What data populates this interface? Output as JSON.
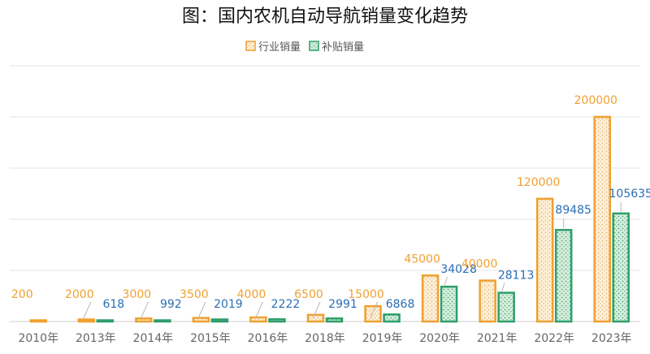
{
  "colors": {
    "industry": "#f0a030",
    "subsidy": "#2e9e6b",
    "industry_label": "#f0a030",
    "subsidy_label": "#2a6eb5",
    "grid": "#e3e3e3",
    "axis": "#cfcfcf"
  },
  "chart_data": {
    "type": "bar",
    "title": "图：国内农机自动导航销量变化趋势",
    "categories": [
      "2010年",
      "2013年",
      "2014年",
      "2015年",
      "2016年",
      "2018年",
      "2019年",
      "2020年",
      "2021年",
      "2022年",
      "2023年"
    ],
    "series": [
      {
        "name": "行业销量",
        "values": [
          200,
          2000,
          3000,
          3500,
          4000,
          6500,
          15000,
          45000,
          40000,
          120000,
          200000
        ]
      },
      {
        "name": "补贴销量",
        "values": [
          null,
          618,
          992,
          2019,
          2222,
          2991,
          6868,
          34028,
          28113,
          89485,
          105635
        ]
      }
    ],
    "ylim": [
      0,
      200000
    ],
    "grid": true,
    "legend": "top-center",
    "xlabel": "",
    "ylabel": ""
  }
}
